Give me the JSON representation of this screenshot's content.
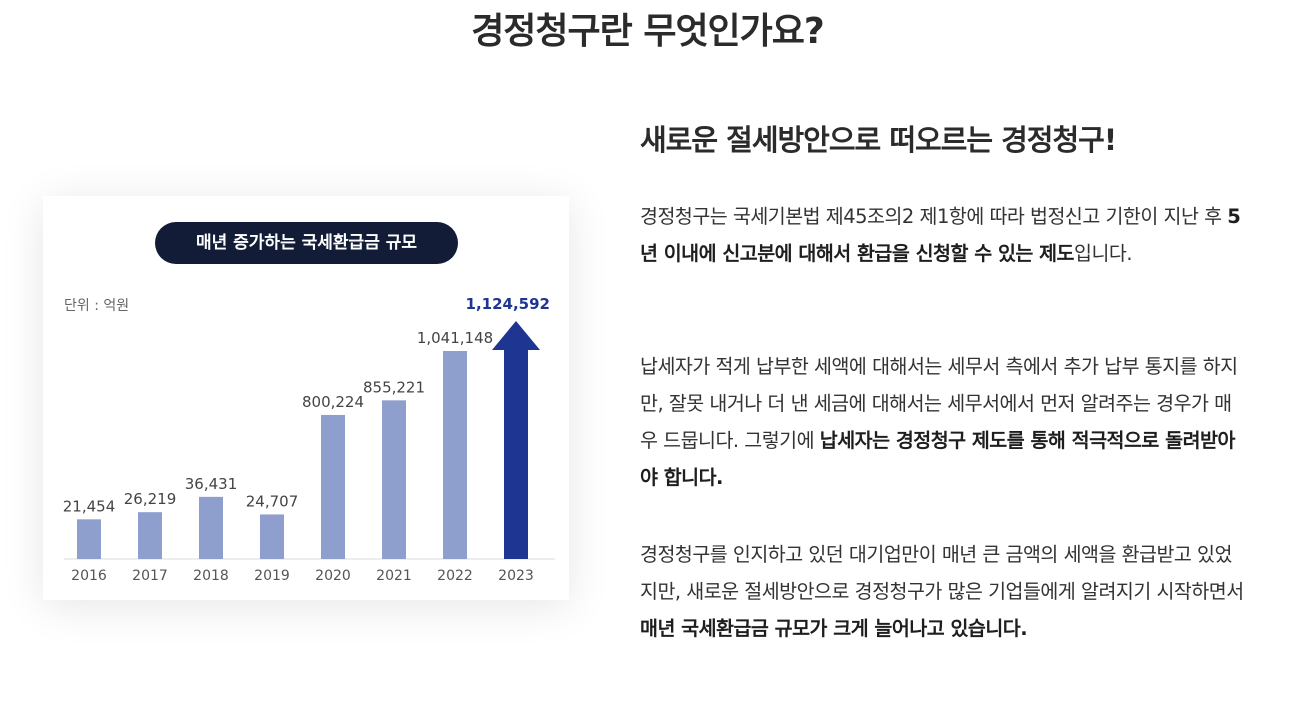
{
  "page": {
    "title": "경정청구란 무엇인가요?"
  },
  "card": {
    "pill_label": "매년 증가하는 국세환급금 규모",
    "unit_label": "단위 : 억원"
  },
  "chart_data": {
    "type": "bar",
    "title": "매년 증가하는 국세환급금 규모",
    "unit": "단위 : 억원",
    "categories": [
      "2016",
      "2017",
      "2018",
      "2019",
      "2020",
      "2021",
      "2022",
      "2023"
    ],
    "values": [
      21454,
      26219,
      36431,
      24707,
      800224,
      855221,
      1041148,
      1124592
    ],
    "value_labels": [
      "21,454",
      "26,219",
      "36,431",
      "24,707",
      "800,224",
      "855,221",
      "1,041,148",
      "1,124,592"
    ],
    "highlight_index": 7,
    "highlight_style": "arrow",
    "colors": {
      "bar": "#8f9fcd",
      "highlight": "#1f3592",
      "highlight_label": "#1f3592"
    }
  },
  "right": {
    "subtitle_bold": "새로운 절세방안",
    "subtitle_rest": "으로 떠오르는 경정청구!",
    "p1_a": "경정청구는 국세기본법 제45조의2 제1항에 따라 법정신고 기한이 지난 후 ",
    "p1_b": "5년 이내에 신고분에 대해서 환급을 신청할 수 있는 제도",
    "p1_c": "입니다.",
    "p2_a": "납세자가 적게 납부한 세액에 대해서는 세무서 측에서 추가 납부 통지를 하지만, 잘못 내거나 더 낸 세금에 대해서는 세무서에서 먼저 알려주는 경우가 매우 드뭅니다. 그렇기에 ",
    "p2_b": "납세자는 경정청구 제도를 통해 적극적으로 돌려받아야 합니다.",
    "p3_a": "경정청구를 인지하고 있던 대기업만이 매년 큰 금액의 세액을 환급받고 있었지만, 새로운 절세방안으로 경정청구가 많은 기업들에게 알려지기 시작하면서 ",
    "p3_b": "매년 국세환급금 규모가 크게 늘어나고 있습니다."
  }
}
